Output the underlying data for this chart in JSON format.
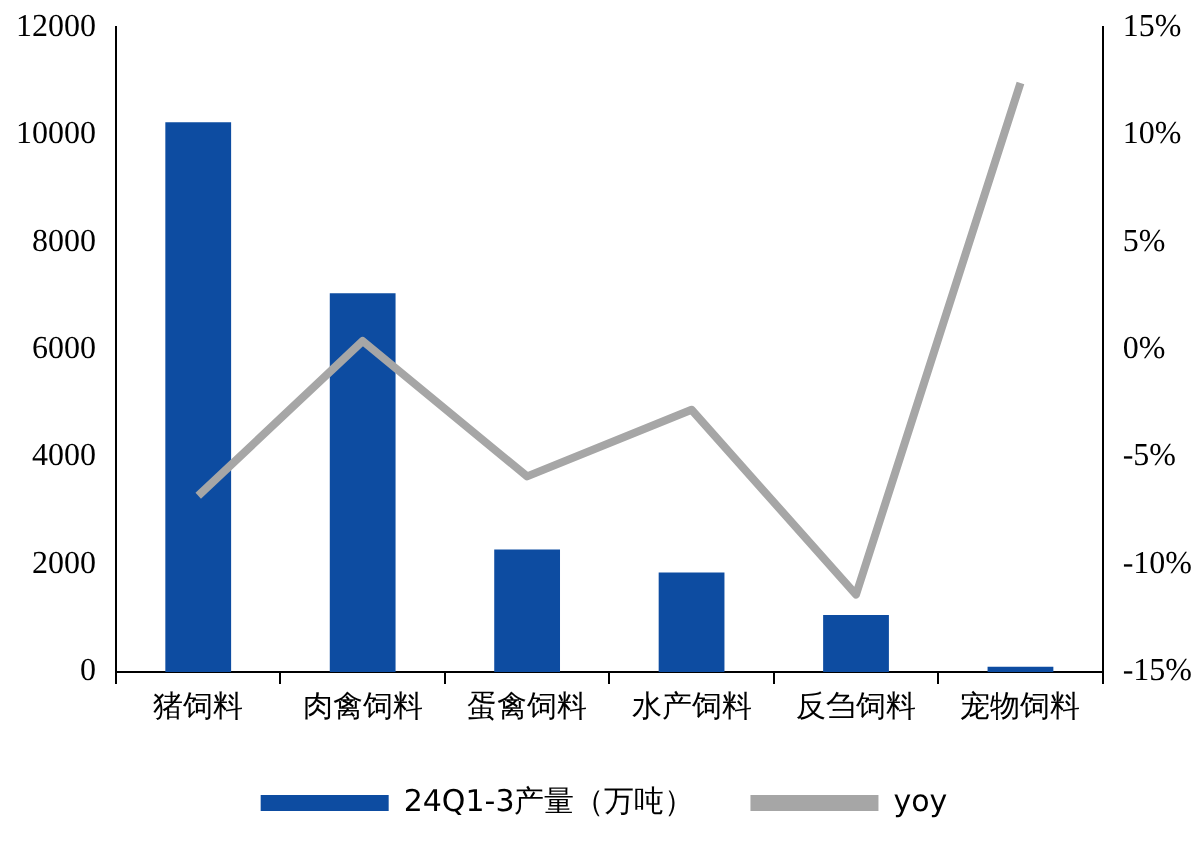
{
  "chart_data": {
    "type": "bar",
    "categories": [
      "猪饲料",
      "肉禽饲料",
      "蛋禽饲料",
      "水产饲料",
      "反刍饲料",
      "宠物饲料"
    ],
    "series": [
      {
        "name": "24Q1-3产量（万吨）",
        "color": "#0d4ca1",
        "values": [
          10230,
          7050,
          2280,
          1850,
          1060,
          100
        ]
      },
      {
        "name": "yoy",
        "type": "line",
        "axis": "y2",
        "color": "#a6a6a6",
        "values": [
          -6.8,
          0.4,
          -5.9,
          -2.8,
          -11.4,
          12.4
        ]
      }
    ],
    "ylim": [
      0,
      12000
    ],
    "yticks": [
      0,
      2000,
      4000,
      6000,
      8000,
      10000,
      12000
    ],
    "y2lim": [
      -15,
      15
    ],
    "y2ticks": [
      {
        "value": -15,
        "label": "-15%"
      },
      {
        "value": -10,
        "label": "-10%"
      },
      {
        "value": -5,
        "label": "-5%"
      },
      {
        "value": 0,
        "label": "0%"
      },
      {
        "value": 5,
        "label": "5%"
      },
      {
        "value": 10,
        "label": "10%"
      },
      {
        "value": 15,
        "label": "15%"
      }
    ],
    "grid": false,
    "legend": "bottom",
    "marker": "none"
  }
}
